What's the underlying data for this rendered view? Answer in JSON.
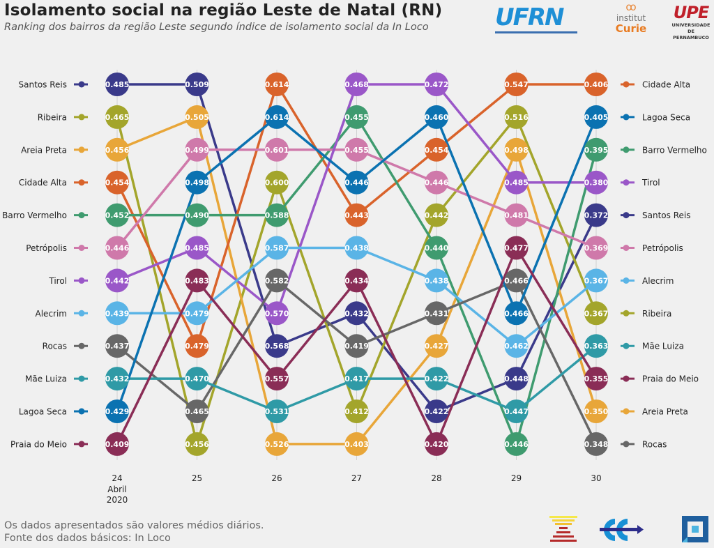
{
  "header": {
    "title": "Isolamento social na região Leste de Natal (RN)",
    "subtitle": "Ranking dos bairros da região Leste segundo índice de isolamento social da In Loco"
  },
  "footer": {
    "line1": "Os dados apresentados são valores médios diários.",
    "line2": "Fonte dos dados básicos: In Loco"
  },
  "logos": {
    "ufrn": "UFRN",
    "curie_top": "institut",
    "curie_bottom": "Curie",
    "upe": "UPE",
    "upe_sub1": "UNIVERSIDADE",
    "upe_sub2": "DE PERNAMBUCO"
  },
  "chart_data": {
    "type": "bump",
    "title": "Isolamento social na região Leste de Natal (RN)",
    "x": [
      "24",
      "25",
      "26",
      "27",
      "28",
      "29",
      "30"
    ],
    "x_sublabel": [
      "Abril",
      "2020"
    ],
    "grid": "vertical",
    "series": [
      {
        "name": "Santos Reis",
        "color": "#3a3a8a",
        "ranks": [
          1,
          1,
          9,
          8,
          11,
          10,
          5
        ],
        "values": [
          "0.485",
          "0.509",
          "0.568",
          "0.432",
          "0.422",
          "0.448",
          "0.372"
        ]
      },
      {
        "name": "Ribeira",
        "color": "#a3a52b",
        "ranks": [
          2,
          12,
          4,
          11,
          5,
          2,
          8
        ],
        "values": [
          "0.465",
          "0.456",
          "0.600",
          "0.412",
          "0.442",
          "0.516",
          "0.367"
        ]
      },
      {
        "name": "Areia Preta",
        "color": "#e8a639",
        "ranks": [
          3,
          2,
          12,
          12,
          9,
          3,
          11
        ],
        "values": [
          "0.456",
          "0.505",
          "0.526",
          "0.403",
          "0.427",
          "0.498",
          "0.350"
        ]
      },
      {
        "name": "Cidade Alta",
        "color": "#d9632b",
        "ranks": [
          4,
          9,
          1,
          5,
          3,
          1,
          1
        ],
        "values": [
          "0.454",
          "0.479",
          "0.614",
          "0.443",
          "0.454",
          "0.547",
          "0.406"
        ]
      },
      {
        "name": "Barro Vermelho",
        "color": "#3f9b6f",
        "ranks": [
          5,
          5,
          5,
          2,
          6,
          12,
          3
        ],
        "values": [
          "0.452",
          "0.490",
          "0.588",
          "0.455",
          "0.440",
          "0.446",
          "0.395"
        ]
      },
      {
        "name": "Petrópolis",
        "color": "#cf79aa",
        "ranks": [
          6,
          3,
          3,
          3,
          4,
          5,
          6
        ],
        "values": [
          "0.446",
          "0.499",
          "0.601",
          "0.455",
          "0.446",
          "0.481",
          "0.369"
        ]
      },
      {
        "name": "Tirol",
        "color": "#9a57c8",
        "ranks": [
          7,
          6,
          8,
          1,
          1,
          4,
          4
        ],
        "values": [
          "0.442",
          "0.485",
          "0.570",
          "0.468",
          "0.472",
          "0.485",
          "0.380"
        ]
      },
      {
        "name": "Alecrim",
        "color": "#5ab4e6",
        "ranks": [
          8,
          8,
          6,
          6,
          7,
          9,
          7
        ],
        "values": [
          "0.439",
          "0.479",
          "0.587",
          "0.438",
          "0.438",
          "0.462",
          "0.367"
        ]
      },
      {
        "name": "Rocas",
        "color": "#676767",
        "ranks": [
          9,
          11,
          7,
          9,
          8,
          7,
          12
        ],
        "values": [
          "0.437",
          "0.465",
          "0.582",
          "0.419",
          "0.431",
          "0.466",
          "0.348"
        ]
      },
      {
        "name": "Mãe Luiza",
        "color": "#2f9aa6",
        "ranks": [
          10,
          10,
          11,
          10,
          10,
          11,
          9
        ],
        "values": [
          "0.432",
          "0.470",
          "0.531",
          "0.417",
          "0.422",
          "0.447",
          "0.363"
        ]
      },
      {
        "name": "Lagoa Seca",
        "color": "#0b72b1",
        "ranks": [
          11,
          4,
          2,
          4,
          2,
          8,
          2
        ],
        "values": [
          "0.429",
          "0.498",
          "0.614",
          "0.446",
          "0.460",
          "0.466",
          "0.405"
        ]
      },
      {
        "name": "Praia do Meio",
        "color": "#8a2d56",
        "ranks": [
          12,
          7,
          10,
          7,
          12,
          6,
          10
        ],
        "values": [
          "0.409",
          "0.483",
          "0.557",
          "0.434",
          "0.420",
          "0.477",
          "0.355"
        ]
      }
    ]
  }
}
